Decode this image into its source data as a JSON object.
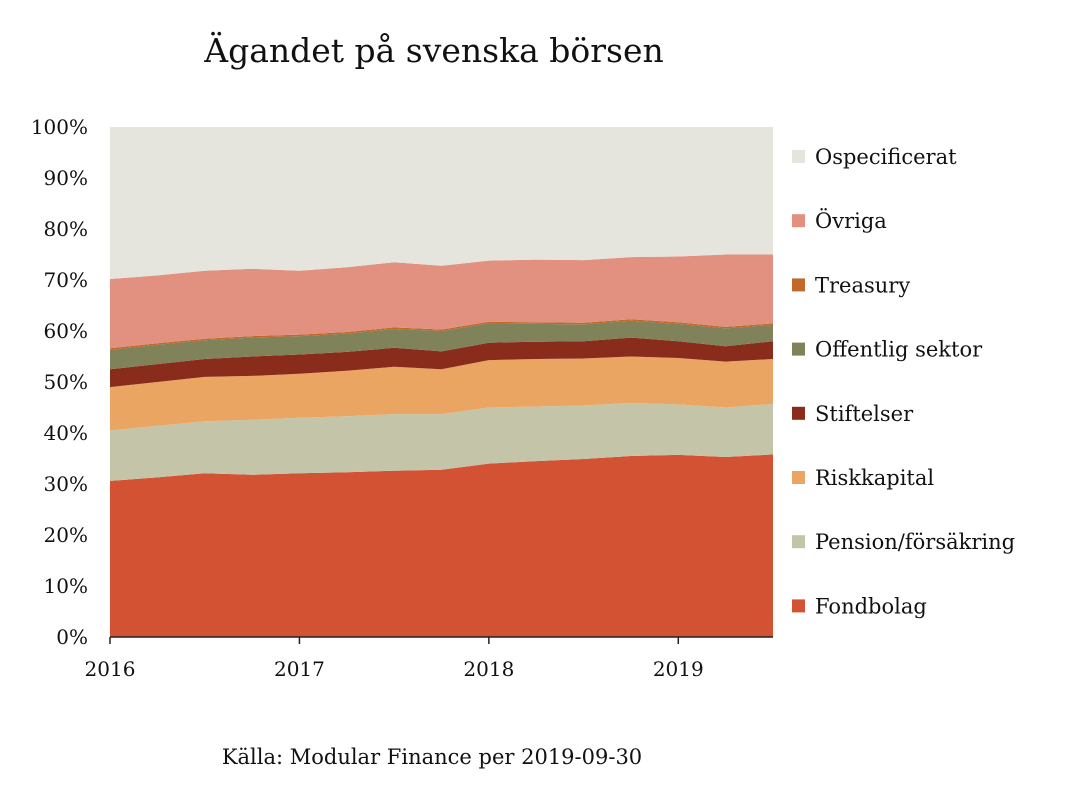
{
  "chart_data": {
    "type": "area",
    "stacked": true,
    "title": "Ägandet på svenska börsen",
    "source": "Källa: Modular Finance per 2019-09-30",
    "xlabel": "",
    "ylabel": "",
    "xlim": [
      2016,
      2019.5
    ],
    "ylim": [
      0,
      100
    ],
    "x": [
      2016.0,
      2016.25,
      2016.5,
      2016.75,
      2017.0,
      2017.25,
      2017.5,
      2017.75,
      2018.0,
      2018.25,
      2018.5,
      2018.75,
      2019.0,
      2019.25,
      2019.5
    ],
    "x_ticks": [
      {
        "value": 2016,
        "label": "2016"
      },
      {
        "value": 2017,
        "label": "2017"
      },
      {
        "value": 2018,
        "label": "2018"
      },
      {
        "value": 2019,
        "label": "2019"
      }
    ],
    "y_ticks": [
      {
        "value": 0,
        "label": "0%"
      },
      {
        "value": 10,
        "label": "10%"
      },
      {
        "value": 20,
        "label": "20%"
      },
      {
        "value": 30,
        "label": "30%"
      },
      {
        "value": 40,
        "label": "40%"
      },
      {
        "value": 50,
        "label": "50%"
      },
      {
        "value": 60,
        "label": "60%"
      },
      {
        "value": 70,
        "label": "70%"
      },
      {
        "value": 80,
        "label": "80%"
      },
      {
        "value": 90,
        "label": "90%"
      },
      {
        "value": 100,
        "label": "100%"
      }
    ],
    "legend_position": "right",
    "series": [
      {
        "name": "Fondbolag",
        "color": "#d35233",
        "values": [
          30.6,
          31.3,
          32.1,
          31.8,
          32.1,
          32.3,
          32.6,
          32.8,
          34.0,
          34.5,
          34.9,
          35.5,
          35.7,
          35.3,
          35.8
        ]
      },
      {
        "name": "Pension/försäkring",
        "color": "#c4c5a8",
        "values": [
          9.9,
          10.1,
          10.2,
          10.8,
          10.9,
          11.0,
          11.1,
          10.9,
          11.0,
          10.7,
          10.5,
          10.4,
          9.9,
          9.7,
          9.9
        ]
      },
      {
        "name": "Riskkapital",
        "color": "#eba563",
        "values": [
          8.5,
          8.6,
          8.7,
          8.6,
          8.6,
          8.9,
          9.3,
          8.8,
          9.3,
          9.3,
          9.2,
          9.1,
          9.1,
          9.0,
          8.8
        ]
      },
      {
        "name": "Stiftelser",
        "color": "#8a2c1b",
        "values": [
          3.5,
          3.5,
          3.5,
          3.8,
          3.8,
          3.7,
          3.7,
          3.5,
          3.4,
          3.4,
          3.4,
          3.7,
          3.3,
          3.0,
          3.5
        ]
      },
      {
        "name": "Offentlig sektor",
        "color": "#808259",
        "values": [
          3.8,
          3.8,
          3.7,
          3.7,
          3.6,
          3.6,
          3.7,
          4.0,
          3.8,
          3.5,
          3.3,
          3.3,
          3.4,
          3.5,
          3.2
        ]
      },
      {
        "name": "Treasury",
        "color": "#c0692b",
        "values": [
          0.3,
          0.3,
          0.3,
          0.3,
          0.3,
          0.3,
          0.3,
          0.3,
          0.3,
          0.3,
          0.3,
          0.3,
          0.3,
          0.3,
          0.3
        ]
      },
      {
        "name": "Övriga",
        "color": "#e29180",
        "values": [
          13.6,
          13.3,
          13.3,
          13.2,
          12.5,
          12.7,
          12.8,
          12.5,
          12.0,
          12.3,
          12.3,
          12.2,
          12.9,
          14.2,
          13.5
        ]
      },
      {
        "name": "Ospecificerat",
        "color": "#e5e5dd",
        "values": [
          29.8,
          29.1,
          28.2,
          27.8,
          28.2,
          27.5,
          26.5,
          27.2,
          26.2,
          26.0,
          26.1,
          25.5,
          25.4,
          25.0,
          25.0
        ]
      }
    ]
  }
}
